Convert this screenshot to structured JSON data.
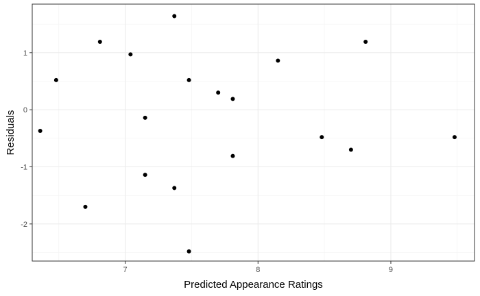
{
  "chart_data": {
    "type": "scatter",
    "xlabel": "Predicted Appearance Ratings",
    "ylabel": "Residuals",
    "xlim": [
      6.3,
      9.63
    ],
    "ylim": [
      -2.65,
      1.85
    ],
    "x_ticks": [
      7,
      8,
      9
    ],
    "y_ticks": [
      -2,
      -1,
      0,
      1
    ],
    "grid": true,
    "point_color": "#000000",
    "points": [
      {
        "x": 6.36,
        "y": -0.37
      },
      {
        "x": 6.48,
        "y": 0.52
      },
      {
        "x": 6.7,
        "y": -1.7
      },
      {
        "x": 6.81,
        "y": 1.19
      },
      {
        "x": 7.04,
        "y": 0.97
      },
      {
        "x": 7.15,
        "y": -0.14
      },
      {
        "x": 7.15,
        "y": -1.14
      },
      {
        "x": 7.37,
        "y": 1.64
      },
      {
        "x": 7.37,
        "y": -1.37
      },
      {
        "x": 7.48,
        "y": 0.52
      },
      {
        "x": 7.48,
        "y": -2.48
      },
      {
        "x": 7.7,
        "y": 0.3
      },
      {
        "x": 7.81,
        "y": 0.19
      },
      {
        "x": 7.81,
        "y": -0.81
      },
      {
        "x": 8.15,
        "y": 0.86
      },
      {
        "x": 8.48,
        "y": -0.48
      },
      {
        "x": 8.7,
        "y": -0.7
      },
      {
        "x": 8.81,
        "y": 1.19
      },
      {
        "x": 9.48,
        "y": -0.48
      }
    ]
  }
}
